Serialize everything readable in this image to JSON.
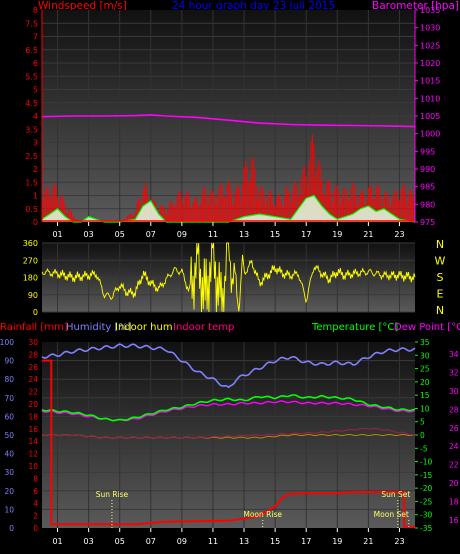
{
  "header": {
    "windspeed_label": "Windspeed [m/s]",
    "title": "24 hour graph day 23 Juli 2015",
    "barometer_label": "Barometer [hpa]"
  },
  "colors": {
    "wind": "#ff0000",
    "gust": "#00ff00",
    "barometer": "#ff00ff",
    "direction": "#ffff00",
    "humidity": "#8080ff",
    "temperature": "#00ff00",
    "dewpoint": "#ff00ff",
    "rain": "#ff0000",
    "indoor_hum": "#ffff00",
    "indoor_temp": "#ff0080",
    "title": "#0000ff",
    "cyan": "#00ffff"
  },
  "x_ticks": [
    "01",
    "03",
    "05",
    "07",
    "09",
    "11",
    "13",
    "15",
    "17",
    "19",
    "21",
    "23"
  ],
  "compass": [
    "N",
    "W",
    "S",
    "E",
    "N"
  ],
  "chart_data": [
    {
      "type": "line",
      "title": "24 hour graph day 23 Juli 2015",
      "ylabel": "Windspeed [m/s]",
      "y2label": "Barometer [hpa]",
      "ylim": [
        0,
        8
      ],
      "y_ticks": [
        "0",
        "0.5",
        "1",
        "1.5",
        "2",
        "2.5",
        "3",
        "3.5",
        "4",
        "4.5",
        "5",
        "5.5",
        "6",
        "6.5",
        "7",
        "7.5",
        "8"
      ],
      "y2lim": [
        975,
        1035
      ],
      "y2_ticks": [
        "975",
        "980",
        "985",
        "990",
        "995",
        "1000",
        "1005",
        "1010",
        "1015",
        "1020",
        "1025",
        "1030",
        "1035"
      ],
      "xlim": [
        0,
        24
      ],
      "series": [
        {
          "key": "barometer",
          "axis": "right",
          "x": [
            0,
            2,
            4,
            6,
            7,
            8,
            10,
            12,
            14,
            16,
            18,
            20,
            22,
            24
          ],
          "y": [
            1004.8,
            1005.0,
            1005.0,
            1005.1,
            1005.3,
            1005.0,
            1004.6,
            1003.8,
            1003.0,
            1002.6,
            1002.4,
            1002.3,
            1002.2,
            1002.0
          ]
        },
        {
          "key": "wind",
          "x": [
            0,
            0.5,
            1,
            1.5,
            2,
            2.5,
            3,
            4,
            5,
            6,
            6.5,
            7,
            7.5,
            8,
            9,
            10,
            10.5,
            11,
            11.5,
            12,
            12.5,
            13,
            13.5,
            14,
            14.5,
            15,
            15.5,
            16,
            16.5,
            17,
            17.5,
            18,
            18.5,
            19,
            19.5,
            20,
            20.5,
            21,
            21.5,
            22,
            22.5,
            23,
            23.5,
            24
          ],
          "y": [
            1.0,
            1.6,
            1.4,
            0.8,
            0.3,
            0,
            0,
            0,
            0,
            0.5,
            1.6,
            1.0,
            0.7,
            0.6,
            1.3,
            0.9,
            1.4,
            1.2,
            1.5,
            1.6,
            1.3,
            2.2,
            2.7,
            1.4,
            1.3,
            1.0,
            1.2,
            1.5,
            1.6,
            2.4,
            3.6,
            1.8,
            1.6,
            1.4,
            1.3,
            1.5,
            1.2,
            1.4,
            1.5,
            1.2,
            1.1,
            1.4,
            1.5,
            1.0
          ]
        },
        {
          "key": "gust",
          "x": [
            0,
            0.5,
            1,
            1.5,
            2,
            2.5,
            3,
            4,
            5,
            6,
            6.5,
            7,
            7.5,
            8,
            9,
            10,
            11,
            12,
            13,
            14,
            15,
            16,
            16.5,
            17,
            17.5,
            18,
            18.5,
            19,
            19.5,
            20,
            20.5,
            21,
            21.5,
            22,
            22.5,
            23,
            24
          ],
          "y": [
            0.1,
            0.3,
            0.5,
            0.2,
            0,
            0,
            0.2,
            0,
            0,
            0.1,
            0.6,
            0.8,
            0.3,
            0,
            0,
            0,
            0,
            0,
            0.2,
            0.3,
            0.2,
            0.1,
            0.5,
            0.9,
            1.0,
            0.6,
            0.3,
            0.1,
            0.2,
            0.3,
            0.5,
            0.6,
            0.4,
            0.5,
            0.3,
            0.1,
            0
          ]
        }
      ]
    },
    {
      "type": "line",
      "ylabel": "",
      "ylim": [
        0,
        360
      ],
      "y_ticks": [
        "0",
        "90",
        "180",
        "270",
        "360"
      ],
      "xlim": [
        0,
        24
      ],
      "series": [
        {
          "key": "direction",
          "x": [
            0,
            1,
            2,
            3,
            3.5,
            4,
            4.5,
            5,
            5.5,
            6,
            6.5,
            7,
            7.5,
            8,
            8.5,
            9,
            9.5,
            10,
            10.5,
            11,
            11.5,
            12,
            12.5,
            13,
            13.5,
            14,
            14.5,
            15,
            15.5,
            16,
            16.5,
            17,
            17.5,
            18,
            18.5,
            19,
            19.5,
            20,
            21,
            22,
            23,
            24
          ],
          "y": [
            210,
            200,
            180,
            190,
            200,
            90,
            80,
            140,
            100,
            100,
            200,
            150,
            120,
            170,
            220,
            210,
            100,
            300,
            60,
            340,
            30,
            350,
            80,
            200,
            260,
            150,
            190,
            230,
            200,
            190,
            200,
            60,
            240,
            200,
            170,
            210,
            190,
            200,
            210,
            190,
            190,
            180
          ]
        }
      ]
    },
    {
      "type": "line",
      "ylabel": "Rainfall [mm]",
      "legend": [
        "Rainfall [mm]",
        "Humidity [%]",
        "Indoor hum",
        "Indoor temp",
        "Temperature [°C]",
        "Dew Point [°C]"
      ],
      "hum_lim": [
        0,
        100
      ],
      "hum_ticks": [
        "0",
        "10",
        "20",
        "30",
        "40",
        "50",
        "60",
        "70",
        "80",
        "90",
        "100"
      ],
      "rain_lim": [
        0,
        30
      ],
      "rain_ticks": [
        "0",
        "2",
        "4",
        "6",
        "8",
        "10",
        "12",
        "14",
        "16",
        "18",
        "20",
        "22",
        "24",
        "26",
        "28",
        "30"
      ],
      "temp_lim": [
        -35,
        35
      ],
      "temp_ticks": [
        "-35",
        "-30",
        "-25",
        "-20",
        "-15",
        "-10",
        "-5",
        "0",
        "5",
        "10",
        "15",
        "20",
        "25",
        "30",
        "35"
      ],
      "temp2_ticks": [
        "16",
        "18",
        "20",
        "22",
        "24",
        "26",
        "28",
        "30",
        "32",
        "34"
      ],
      "xlim": [
        0,
        24
      ],
      "series": [
        {
          "key": "humidity",
          "axis": "hum",
          "x": [
            0,
            1,
            2,
            3,
            4,
            5,
            6,
            7,
            8,
            9,
            10,
            11,
            12,
            12.5,
            13,
            14,
            15,
            16,
            17,
            18,
            19,
            20,
            21,
            22,
            23,
            24
          ],
          "y": [
            92,
            93,
            95,
            96,
            97,
            98,
            98,
            97,
            96,
            90,
            84,
            80,
            75,
            80,
            82,
            86,
            90,
            92,
            89,
            88,
            89,
            88,
            92,
            95,
            96,
            96
          ]
        },
        {
          "key": "temperature",
          "axis": "temp",
          "x": [
            0,
            1,
            2,
            3,
            4,
            5,
            6,
            7,
            8,
            9,
            10,
            11,
            12,
            13,
            14,
            15,
            16,
            17,
            18,
            19,
            20,
            21,
            22,
            23,
            24
          ],
          "y": [
            9.5,
            9.0,
            8.5,
            7.5,
            6.0,
            5.5,
            6.5,
            8.0,
            9.5,
            10.5,
            12.0,
            13.0,
            13.5,
            13.0,
            14.5,
            14.0,
            15.0,
            14.0,
            14.5,
            14.0,
            13.5,
            11.5,
            10.5,
            9.5,
            9.5
          ]
        },
        {
          "key": "dewpoint",
          "axis": "temp",
          "x": [
            0,
            1,
            2,
            3,
            4,
            5,
            6,
            7,
            8,
            9,
            10,
            11,
            12,
            13,
            14,
            15,
            16,
            17,
            18,
            19,
            20,
            21,
            22,
            23,
            24
          ],
          "y": [
            9.0,
            8.5,
            8.0,
            7.0,
            6.0,
            5.5,
            6.0,
            7.5,
            9.0,
            10.0,
            11.0,
            11.5,
            11.5,
            12.0,
            12.0,
            12.5,
            12.5,
            12.0,
            12.0,
            12.0,
            11.5,
            11.0,
            10.0,
            9.0,
            9.0
          ]
        },
        {
          "key": "indoor_hum",
          "axis": "temp",
          "x": [
            0,
            2,
            4,
            6,
            8,
            10,
            12,
            14,
            16,
            18,
            20,
            22,
            24
          ],
          "y": [
            0,
            0,
            -1,
            -1,
            -1,
            -1,
            -1,
            -1,
            0,
            0,
            0,
            0,
            0
          ]
        },
        {
          "key": "indoor_temp",
          "axis": "temp",
          "x": [
            0,
            2,
            4,
            6,
            8,
            10,
            12,
            14,
            16,
            18,
            20,
            21,
            22,
            23,
            24
          ],
          "y": [
            0,
            0,
            -1,
            -1,
            -1,
            -1,
            -0.5,
            0,
            0.5,
            1,
            2,
            2.5,
            2,
            1,
            0
          ]
        },
        {
          "key": "rain",
          "axis": "rain",
          "x": [
            0,
            0.6,
            0.6,
            2,
            6,
            8,
            12,
            13,
            14,
            15,
            15.5,
            16,
            17,
            18,
            19,
            20,
            21,
            22,
            23.3,
            23.3,
            24
          ],
          "y": [
            27,
            27,
            0.6,
            0.6,
            0.6,
            1.0,
            1.2,
            1.5,
            2.0,
            3.5,
            5.0,
            5.5,
            5.6,
            5.6,
            5.6,
            5.8,
            5.8,
            5.8,
            5.8,
            0.2,
            0.2
          ]
        }
      ],
      "annotations": [
        {
          "label": "Sun Rise",
          "x": 4.5
        },
        {
          "label": "Moon Rise",
          "x": 14.2
        },
        {
          "label": "Sun Set",
          "x": 22.9
        },
        {
          "label": "Moon Set",
          "x": 23.6
        }
      ]
    }
  ]
}
